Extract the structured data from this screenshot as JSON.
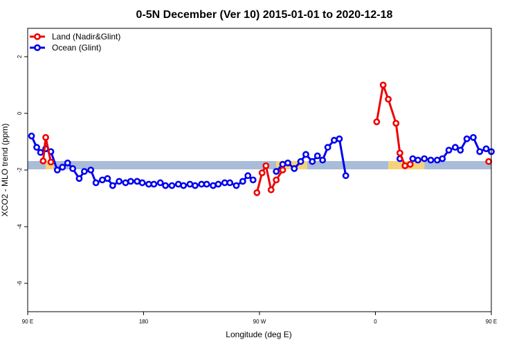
{
  "chart_data": {
    "type": "line",
    "title": "0-5N December (Ver 10)   2015-01-01 to 2020-12-18",
    "xlabel": "Longitude (deg E)",
    "ylabel": "XCO2 - MLO trend (ppm)",
    "xlim": [
      90,
      450
    ],
    "ylim": [
      -7,
      3
    ],
    "x_ticks": [
      {
        "value": 90,
        "label": "90 E"
      },
      {
        "value": 180,
        "label": "180"
      },
      {
        "value": 270,
        "label": "90 W"
      },
      {
        "value": 360,
        "label": "0"
      },
      {
        "value": 450,
        "label": "90 E"
      },
      {
        "value": 540,
        "label": "180"
      }
    ],
    "y_ticks": [
      {
        "value": 2,
        "label": "2"
      },
      {
        "value": 0,
        "label": "0"
      },
      {
        "value": -2,
        "label": "-2"
      },
      {
        "value": -4,
        "label": "-4"
      },
      {
        "value": -6,
        "label": "-6"
      }
    ],
    "legend_position": "top-left",
    "band": {
      "y": -1.83,
      "segments": [
        {
          "x0": 90,
          "x1": 104,
          "color": "#A9BCD8"
        },
        {
          "x0": 104,
          "x1": 110,
          "color": "#F5D27A"
        },
        {
          "x0": 110,
          "x1": 283,
          "color": "#A9BCD8"
        },
        {
          "x0": 283,
          "x1": 307,
          "color": "#F5D27A"
        },
        {
          "x0": 307,
          "x1": 370,
          "color": "#A9BCD8"
        },
        {
          "x0": 370,
          "x1": 398,
          "color": "#F5D27A"
        },
        {
          "x0": 398,
          "x1": 462,
          "color": "#A9BCD8"
        },
        {
          "x0": 462,
          "x1": 467,
          "color": "#F5D27A"
        },
        {
          "x0": 467,
          "x1": 478,
          "color": "#A9BCD8"
        },
        {
          "x0": 478,
          "x1": 483,
          "color": "#F5D27A"
        },
        {
          "x0": 483,
          "x1": 540,
          "color": "#A9BCD8"
        }
      ]
    },
    "series": [
      {
        "name": "Ocean (Glint)",
        "color": "#0000EE",
        "points": [
          [
            93,
            -0.8
          ],
          [
            97,
            -1.2
          ],
          [
            100,
            -1.38
          ],
          [
            104,
            -1.25
          ],
          [
            108,
            -1.35
          ],
          [
            113,
            -2.0
          ],
          [
            117,
            -1.9
          ],
          [
            121,
            -1.75
          ],
          [
            125,
            -1.95
          ],
          [
            130,
            -2.3
          ],
          [
            134,
            -2.05
          ],
          [
            139,
            -2.0
          ],
          [
            143,
            -2.45
          ],
          [
            148,
            -2.35
          ],
          [
            152,
            -2.3
          ],
          [
            156,
            -2.55
          ],
          [
            161,
            -2.4
          ],
          [
            166,
            -2.45
          ],
          [
            170,
            -2.4
          ],
          [
            175,
            -2.4
          ],
          [
            179,
            -2.45
          ],
          [
            184,
            -2.5
          ],
          [
            188,
            -2.5
          ],
          [
            193,
            -2.45
          ],
          [
            197,
            -2.55
          ],
          [
            202,
            -2.55
          ],
          [
            207,
            -2.5
          ],
          [
            211,
            -2.55
          ],
          [
            216,
            -2.5
          ],
          [
            220,
            -2.55
          ],
          [
            225,
            -2.5
          ],
          [
            229,
            -2.5
          ],
          [
            234,
            -2.55
          ],
          [
            238,
            -2.5
          ],
          [
            243,
            -2.45
          ],
          [
            247,
            -2.45
          ],
          [
            252,
            -2.55
          ],
          [
            257,
            -2.4
          ],
          [
            261,
            -2.2
          ],
          [
            265,
            -2.35
          ],
          [
            270,
            null
          ],
          [
            283,
            -2.05
          ],
          [
            288,
            -1.8
          ],
          [
            292,
            -1.75
          ],
          [
            297,
            -1.95
          ],
          [
            302,
            -1.7
          ],
          [
            306,
            -1.45
          ],
          [
            311,
            -1.7
          ],
          [
            315,
            -1.5
          ],
          [
            319,
            -1.65
          ],
          [
            323,
            -1.2
          ],
          [
            328,
            -0.95
          ],
          [
            332,
            -0.9
          ],
          [
            337,
            -2.2
          ],
          [
            342,
            null
          ],
          [
            379,
            -1.6
          ],
          [
            384,
            null
          ],
          [
            389,
            -1.6
          ],
          [
            393,
            -1.65
          ],
          [
            398,
            -1.6
          ],
          [
            403,
            -1.65
          ],
          [
            408,
            -1.65
          ],
          [
            412,
            -1.6
          ],
          [
            417,
            -1.3
          ],
          [
            422,
            -1.2
          ],
          [
            426,
            -1.3
          ],
          [
            431,
            -0.9
          ],
          [
            436,
            -0.85
          ],
          [
            441,
            -1.35
          ],
          [
            446,
            -1.25
          ],
          [
            450,
            -1.35
          ]
        ]
      },
      {
        "name": "Land (Nadir&Glint)",
        "color": "#EE0000",
        "points": [
          [
            102,
            -1.68
          ],
          [
            104,
            -0.85
          ],
          [
            108,
            -1.72
          ],
          [
            110,
            null
          ],
          [
            268,
            -2.8
          ],
          [
            272,
            -2.1
          ],
          [
            275,
            -1.85
          ],
          [
            279,
            -2.7
          ],
          [
            283,
            -2.35
          ],
          [
            288,
            -2.0
          ],
          [
            290,
            null
          ],
          [
            361,
            -0.3
          ],
          [
            366,
            1.0
          ],
          [
            370,
            0.5
          ],
          [
            376,
            -0.35
          ],
          [
            379,
            -1.4
          ],
          [
            383,
            -1.85
          ],
          [
            387,
            -1.8
          ],
          [
            390,
            null
          ],
          [
            448,
            -1.7
          ],
          [
            451,
            -0.85
          ],
          [
            454,
            -1.72
          ],
          [
            456,
            null
          ]
        ]
      }
    ]
  }
}
